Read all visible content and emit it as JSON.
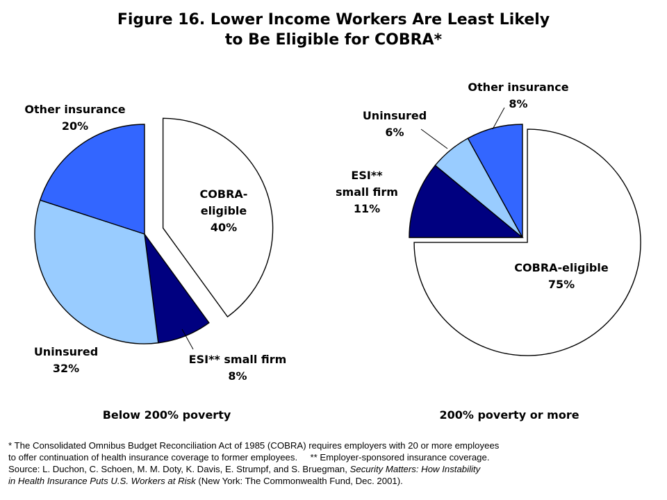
{
  "title": {
    "line1": "Figure 16. Lower Income Workers Are Least Likely",
    "line2": "to Be Eligible for COBRA*"
  },
  "chart_data": [
    {
      "type": "pie",
      "title": "Below 200% poverty",
      "slices": [
        {
          "label_lines": [
            "COBRA-",
            "eligible",
            "40%"
          ],
          "value": 40,
          "color": "#ffffff",
          "exploded": true
        },
        {
          "label_lines": [
            "ESI** small firm",
            "8%"
          ],
          "value": 8,
          "color": "#000080"
        },
        {
          "label_lines": [
            "Uninsured",
            "32%"
          ],
          "value": 32,
          "color": "#99ccff"
        },
        {
          "label_lines": [
            "Other insurance",
            "20%"
          ],
          "value": 20,
          "color": "#3366ff"
        }
      ]
    },
    {
      "type": "pie",
      "title": "200% poverty or more",
      "slices": [
        {
          "label_lines": [
            "COBRA-eligible",
            "75%"
          ],
          "value": 75,
          "color": "#ffffff",
          "exploded": true
        },
        {
          "label_lines": [
            "ESI**",
            "small firm",
            "11%"
          ],
          "value": 11,
          "color": "#000080"
        },
        {
          "label_lines": [
            "Uninsured",
            "6%"
          ],
          "value": 6,
          "color": "#99ccff"
        },
        {
          "label_lines": [
            "Other insurance",
            "8%"
          ],
          "value": 8,
          "color": "#3366ff"
        }
      ]
    }
  ],
  "notes": {
    "footnote1_line1": "* The Consolidated Omnibus Budget Reconciliation Act of 1985 (COBRA) requires employers with 20 or more employees",
    "footnote1_line2": "to offer continuation of health insurance coverage to former employees.",
    "footnote2": "** Employer-sponsored insurance coverage.",
    "source_line1_prefix": "Source: L. Duchon, C. Schoen, M. M. Doty, K. Davis, E. Strumpf, and S. Bruegman,",
    "source_title_part1": "Security Matters: How Instability",
    "source_title_part2": "in Health Insurance Puts U.S. Workers at Risk",
    "source_suffix": "(New York: The Commonwealth Fund, Dec. 2001)."
  }
}
